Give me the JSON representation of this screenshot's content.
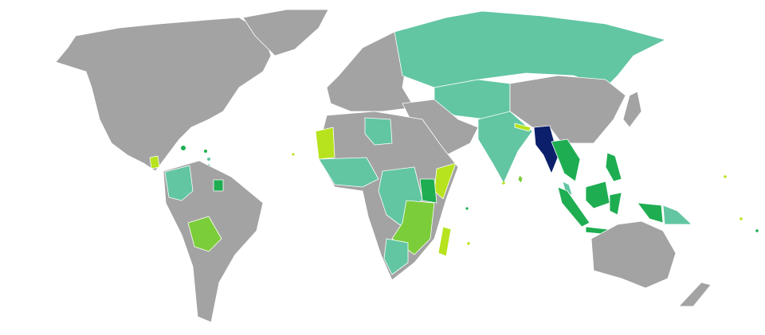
{
  "map": {
    "colors": {
      "background": "#ffffff",
      "no_data_or_visa_required": "#a3a3a3",
      "subject_country": "#0b1f6b",
      "visa_free_green": "#1fad52",
      "teal_category": "#62c6a2",
      "light_green_category": "#7ccd3a",
      "lime_category": "#b7e31e"
    },
    "highlighted_country": "Myanmar"
  }
}
